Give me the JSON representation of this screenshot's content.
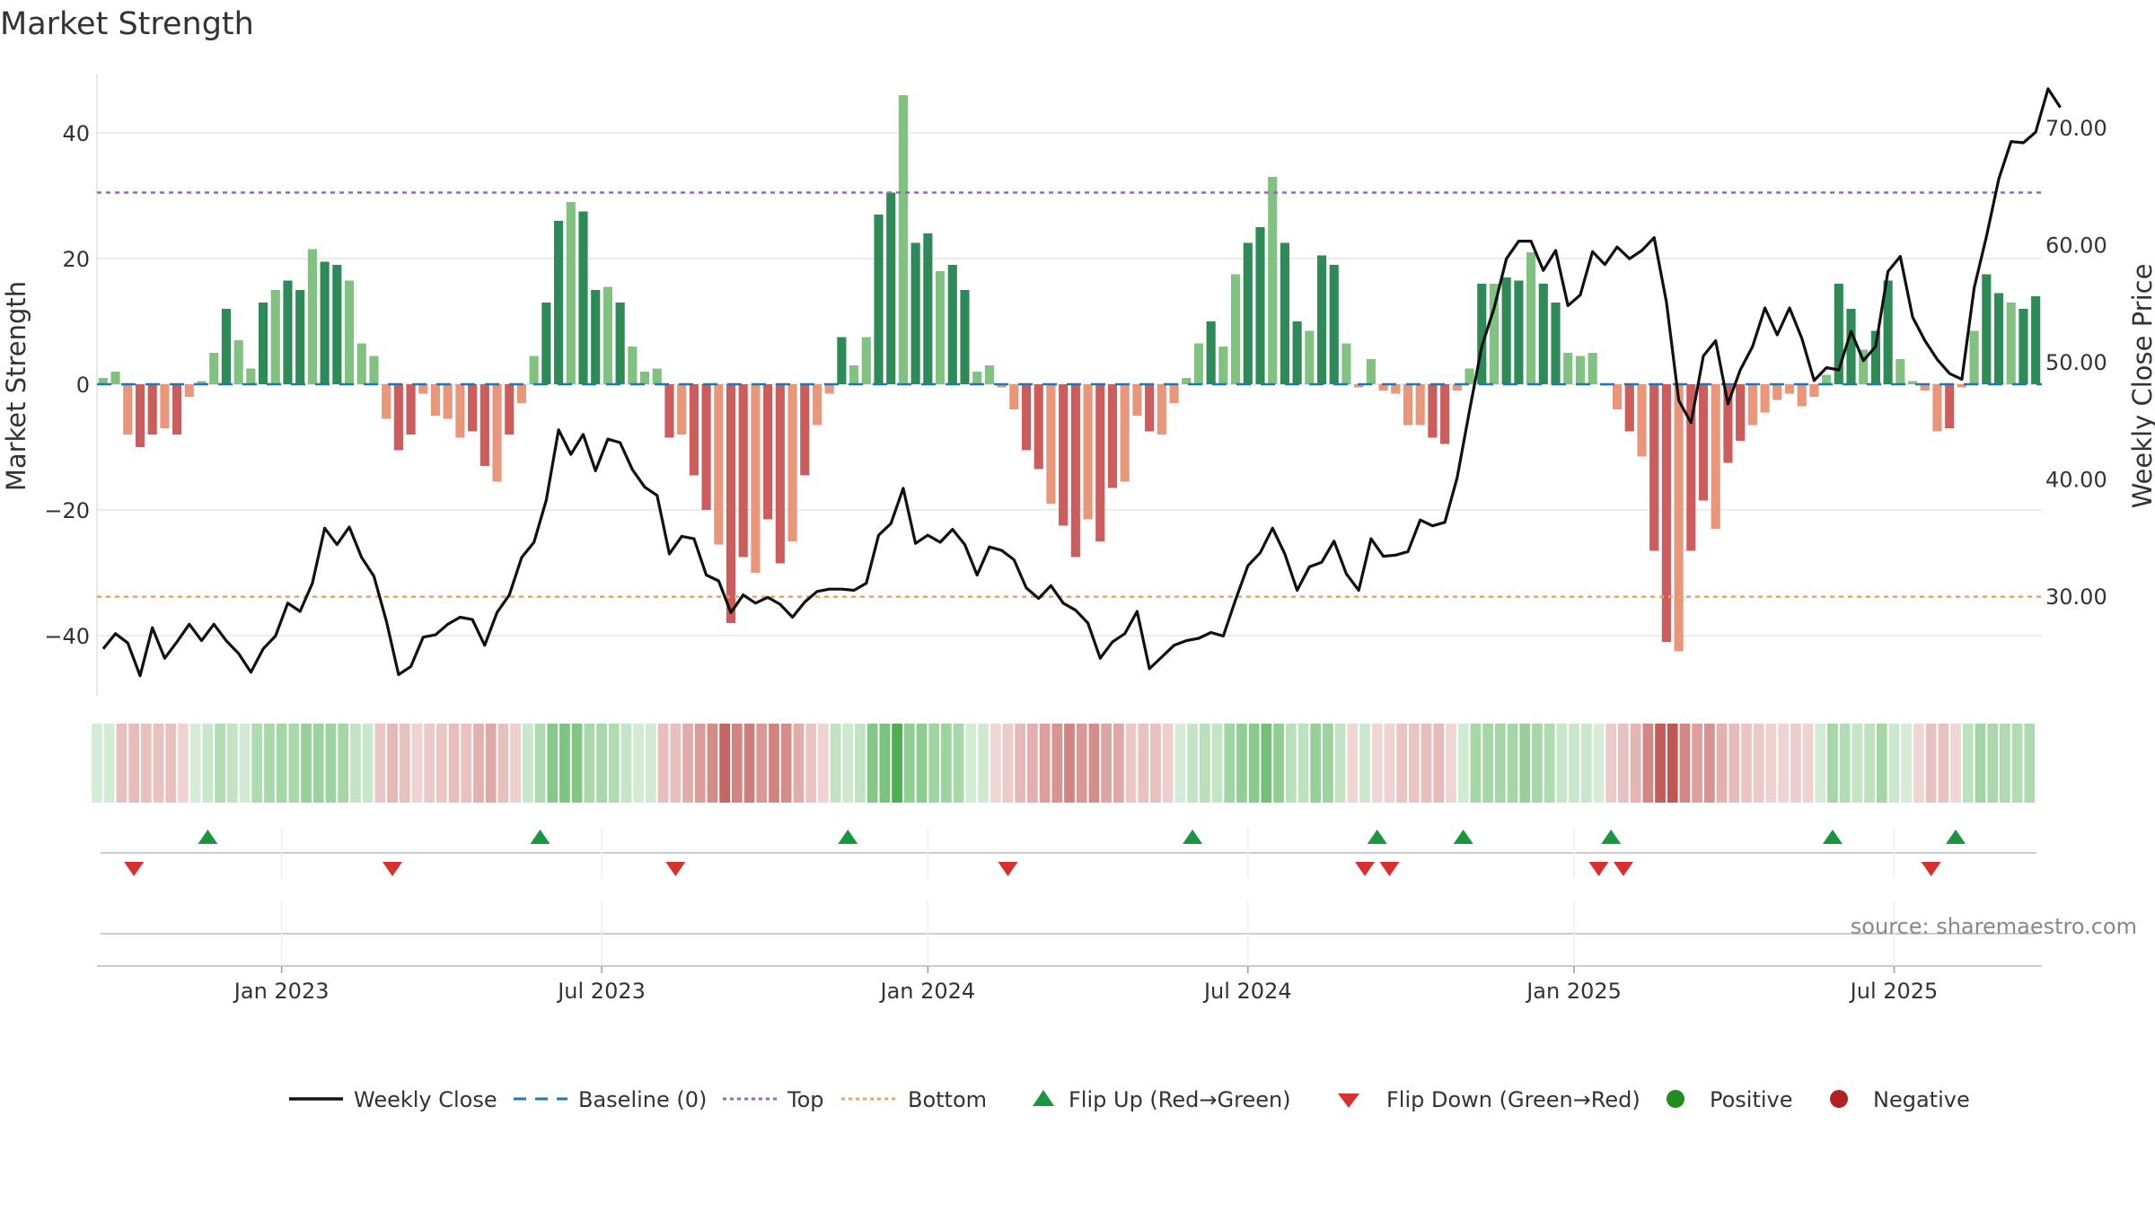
{
  "chart_data": {
    "type": "bar",
    "title": "Market Strength",
    "ylabel_left": "Market Strength",
    "ylabel_right": "Weekly Close Price",
    "ylim_left": [
      -50,
      50
    ],
    "ylim_right": [
      20,
      75
    ],
    "left_ticks": [
      "40",
      "20",
      "0",
      "−20",
      "−40"
    ],
    "left_tick_values": [
      40,
      20,
      0,
      -20,
      -40
    ],
    "right_ticks": [
      "70.00",
      "60.00",
      "50.00",
      "40.00",
      "30.00"
    ],
    "right_tick_values": [
      70,
      60,
      50,
      40,
      30
    ],
    "date_ticks": [
      "Jan 2023",
      "Jul 2023",
      "Jan 2024",
      "Jul 2024",
      "Jan 2025",
      "Jul 2025"
    ],
    "date_tick_weeks": [
      14.5,
      40.5,
      67,
      93,
      119.5,
      145.5
    ],
    "top_level": 30.5,
    "bottom_level": -33.8,
    "strength": [
      1,
      2,
      -8,
      -10,
      -8,
      -7,
      -8,
      -2,
      0.5,
      5,
      12,
      7,
      2.5,
      13,
      15,
      16.5,
      15,
      21.5,
      19.5,
      19,
      16.5,
      6.5,
      4.5,
      -5.5,
      -10.5,
      -8,
      -1.5,
      -5,
      -5.5,
      -8.5,
      -7.5,
      -13,
      -15.5,
      -8,
      -3,
      4.5,
      13,
      26,
      29,
      27.5,
      15,
      15.5,
      13,
      6,
      2,
      2.5,
      -8.5,
      -8,
      -14.5,
      -20,
      -25.5,
      -38,
      -27.5,
      -30,
      -21.5,
      -28.5,
      -25,
      -14.5,
      -6.5,
      -1.5,
      7.5,
      3,
      7.5,
      27,
      30.5,
      46,
      22.5,
      24,
      18,
      19,
      15,
      2,
      3,
      -0.5,
      -4,
      -10.5,
      -13.5,
      -19,
      -22.5,
      -27.5,
      -21.5,
      -25,
      -16.5,
      -15.5,
      -5,
      -7.5,
      -8,
      -3,
      1,
      6.5,
      10,
      6,
      17.5,
      22.5,
      25,
      33,
      22.5,
      10,
      8.5,
      20.5,
      19,
      6.5,
      -0.5,
      4,
      -1,
      -1.5,
      -6.5,
      -6.5,
      -8.5,
      -9.5,
      -1,
      2.5,
      16,
      16,
      17,
      16.5,
      21,
      16,
      13,
      5,
      4.5,
      5,
      0,
      -4,
      -7.5,
      -11.5,
      -26.5,
      -41,
      -42.5,
      -26.5,
      -18.5,
      -23,
      -12.5,
      -9,
      -6.5,
      -4.5,
      -2.5,
      -1.5,
      -3.5,
      -2,
      1.5,
      16,
      12,
      5.5,
      8.5,
      16.5,
      4,
      0.5,
      -1,
      -7.5,
      -7,
      -0.5,
      8.5,
      17.5,
      14.5,
      13,
      12,
      14
    ],
    "close": [
      25.5,
      26.8,
      26,
      23.2,
      27.3,
      24.7,
      26.1,
      27.6,
      26.2,
      27.6,
      26.2,
      25.1,
      23.5,
      25.5,
      26.6,
      29.4,
      28.7,
      31.1,
      35.8,
      34.4,
      35.9,
      33.3,
      31.7,
      27.9,
      23.3,
      24,
      26.5,
      26.7,
      27.6,
      28.2,
      28,
      25.8,
      28.6,
      30.1,
      33.3,
      34.6,
      38.2,
      44.2,
      42.1,
      43.8,
      40.7,
      43.4,
      43.1,
      40.8,
      39.3,
      38.6,
      33.6,
      35.1,
      34.9,
      31.8,
      31.3,
      28.6,
      30.1,
      29.4,
      29.9,
      29.3,
      28.2,
      29.5,
      30.4,
      30.6,
      30.6,
      30.5,
      31.1,
      35.2,
      36.2,
      39.2,
      34.5,
      35.2,
      34.6,
      35.7,
      34.4,
      31.8,
      34.2,
      33.9,
      33.1,
      30.7,
      29.8,
      30.9,
      29.4,
      28.8,
      27.7,
      24.7,
      26.1,
      26.8,
      28.7,
      23.8,
      24.8,
      25.8,
      26.2,
      26.4,
      26.9,
      26.6,
      29.7,
      32.6,
      33.7,
      35.8,
      33.6,
      30.5,
      32.5,
      32.9,
      34.7,
      31.9,
      30.5,
      34.9,
      33.4,
      33.5,
      33.8,
      36.5,
      36,
      36.3,
      40.1,
      45.8,
      51.3,
      54.6,
      58.8,
      60.3,
      60.3,
      57.8,
      59.5,
      54.8,
      55.7,
      59.4,
      58.3,
      59.8,
      58.8,
      59.5,
      60.6,
      55.1,
      46.7,
      44.8,
      50.5,
      51.8,
      46.4,
      49.3,
      51.3,
      54.6,
      52.3,
      54.6,
      52,
      48.4,
      49.5,
      49.3,
      52.6,
      50.1,
      51.3,
      57.7,
      59,
      53.8,
      51.8,
      50.2,
      49,
      48.5,
      56.3,
      60.7,
      65.6,
      68.8,
      68.7,
      69.6,
      73.3,
      71.7
    ],
    "series": [
      {
        "name": "Market Strength",
        "axis": "left",
        "type": "bar"
      },
      {
        "name": "Weekly Close",
        "axis": "right",
        "type": "line"
      }
    ],
    "flip_up_weeks": [
      8.5,
      35.5,
      60.5,
      88.5,
      103.5,
      110.5,
      122.5,
      140.5,
      150.5
    ],
    "flip_down_weeks": [
      2.5,
      23.5,
      46.5,
      73.5,
      102.5,
      104.5,
      121.5,
      123.5,
      148.5
    ],
    "legend": [
      {
        "label": "Weekly Close",
        "symbol": "solid-line"
      },
      {
        "label": "Baseline (0)",
        "symbol": "dashed-line"
      },
      {
        "label": "Top",
        "symbol": "dotted-line"
      },
      {
        "label": "Bottom",
        "symbol": "dotted-line"
      },
      {
        "label": "Flip Up (Red→Green)",
        "symbol": "triangle-up"
      },
      {
        "label": "Flip Down (Green→Red)",
        "symbol": "triangle-down"
      },
      {
        "label": "Positive",
        "symbol": "circle"
      },
      {
        "label": "Negative",
        "symbol": "circle"
      }
    ],
    "legend_position": "bottom-center",
    "source": "source: sharemaestro.com",
    "colors": {
      "line": "#111111",
      "baseline": "#1f77b4",
      "top": "#9467bd",
      "bottom": "#f0a060",
      "flip_up": "#1a9641",
      "flip_down": "#d7302f",
      "positive_dot": "#228b22",
      "negative_dot": "#b22222",
      "pos_strong": "#2e8b57",
      "pos_light": "#81c281",
      "neg_strong": "#cd5c5c",
      "neg_light": "#e9967a"
    }
  }
}
